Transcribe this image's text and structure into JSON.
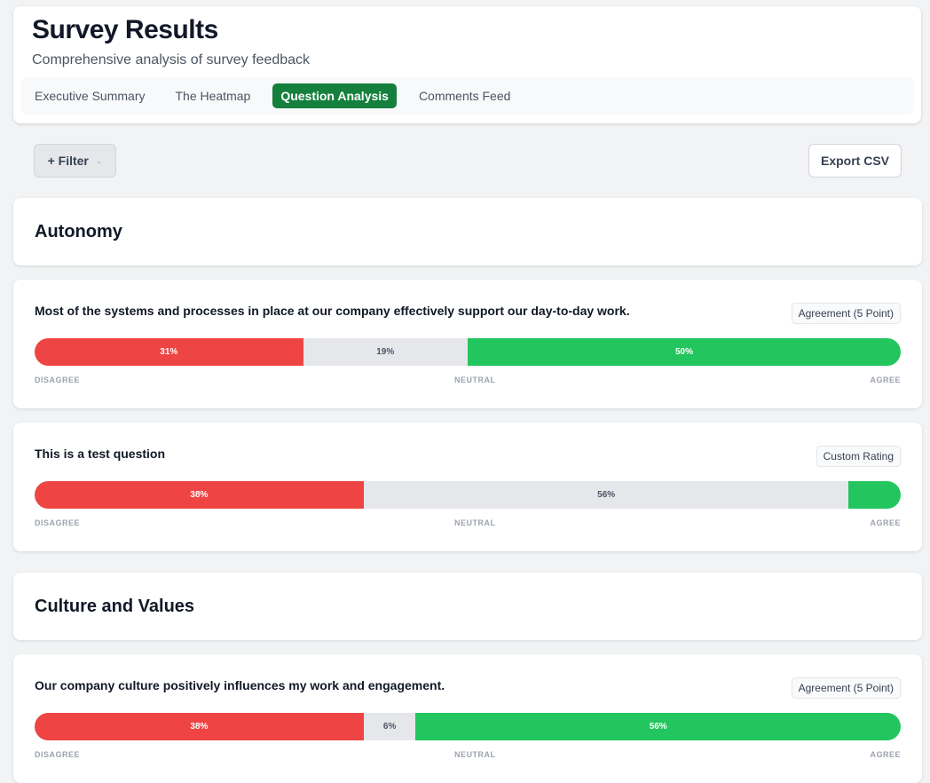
{
  "header": {
    "title": "Survey Results",
    "subtitle": "Comprehensive analysis of survey feedback",
    "tabs": [
      {
        "label": "Executive Summary"
      },
      {
        "label": "The Heatmap"
      },
      {
        "label": "Question Analysis"
      },
      {
        "label": "Comments Feed"
      }
    ]
  },
  "toolbar": {
    "filter_label": "+ Filter",
    "filter_chevron": "⌄",
    "export_label": "Export CSV"
  },
  "scale": {
    "disagree": "DISAGREE",
    "neutral": "NEUTRAL",
    "agree": "AGREE"
  },
  "sections": [
    {
      "title": "Autonomy",
      "questions": [
        {
          "text": "Most of the systems and processes in place at our company effectively support our day-to-day work.",
          "type": "Agreement (5 Point)",
          "disagree": 31,
          "neutral": 19,
          "agree": 50,
          "labels": [
            "31%",
            "19%",
            "50%"
          ]
        },
        {
          "text": "This is a test question",
          "type": "Custom Rating",
          "disagree": 38,
          "neutral": 56,
          "agree": 6,
          "labels": [
            "38%",
            "56%",
            ""
          ]
        }
      ]
    },
    {
      "title": "Culture and Values",
      "questions": [
        {
          "text": "Our company culture positively influences my work and engagement.",
          "type": "Agreement (5 Point)",
          "disagree": 38,
          "neutral": 6,
          "agree": 56,
          "labels": [
            "38%",
            "6%",
            "56%"
          ]
        }
      ]
    }
  ],
  "colors": {
    "accent": "#15803d",
    "disagree": "#ef4444",
    "neutral": "#e5e7eb",
    "agree": "#22c55e"
  }
}
